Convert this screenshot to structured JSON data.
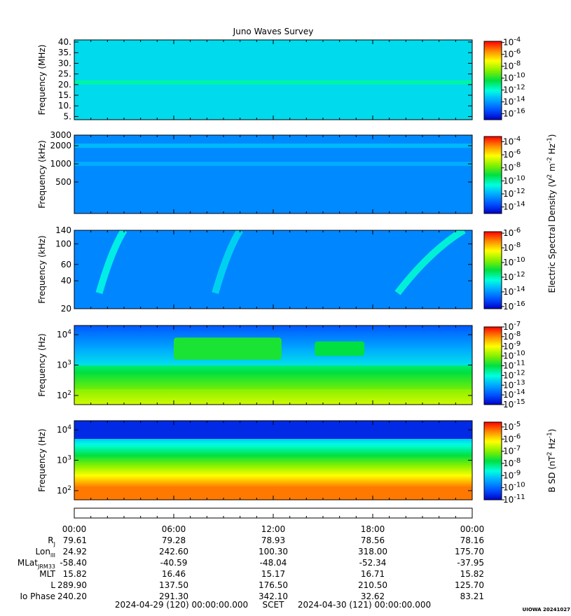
{
  "title": "Juno Waves Survey",
  "footer": {
    "start": "2024-04-29 (120) 00:00:00.000",
    "scet": "SCET",
    "end": "2024-04-30 (121) 00:00:00.000",
    "stamp": "UIOWA 20241027"
  },
  "colorbar_labels": {
    "electric": "Electric Spectral Density (V2 m-2 Hz-1)",
    "magnetic": "B SD (nT2 Hz-1)"
  },
  "chart_data": [
    {
      "type": "heatmap",
      "panel": "spectrogram-40mhz",
      "ylabel": "Frequency (MHz)",
      "yscale": "linear",
      "ylim": [
        3.5,
        41
      ],
      "yticks": [
        "5.",
        "10.",
        "15.",
        "20.",
        "25.",
        "30.",
        "35.",
        "40."
      ],
      "xlim_hours": [
        0,
        24
      ],
      "colorbar": {
        "ticks": [
          "-4",
          "-6",
          "-8",
          "-10",
          "-12",
          "-14",
          "-16"
        ],
        "range_log10": [
          -17,
          -3.8
        ]
      },
      "features": [
        {
          "kind": "emission-band",
          "freq_mhz": 21,
          "level_log10": -11.5
        }
      ],
      "background_log10": -12.8
    },
    {
      "type": "heatmap",
      "panel": "spectrogram-3mhz",
      "ylabel": "Frequency (kHz)",
      "yscale": "log",
      "ylim": [
        150,
        3000
      ],
      "yticks": [
        "3000",
        "2000",
        "1000",
        "500"
      ],
      "xlim_hours": [
        0,
        24
      ],
      "colorbar": {
        "ticks": [
          "-4",
          "-6",
          "-8",
          "-10",
          "-12",
          "-14"
        ],
        "range_log10": [
          -15,
          -3.2
        ]
      },
      "features": [
        {
          "kind": "emission-band",
          "freq_khz": 2000,
          "level_log10": -11.8
        },
        {
          "kind": "emission-band",
          "freq_khz": 1000,
          "level_log10": -12.0
        }
      ],
      "background_log10": -12.6
    },
    {
      "type": "heatmap",
      "panel": "spectrogram-140khz",
      "ylabel": "Frequency (kHz)",
      "yscale": "log",
      "ylim": [
        20,
        140
      ],
      "yticks": [
        "140",
        "100",
        "60",
        "40",
        "20"
      ],
      "xlim_hours": [
        0,
        24
      ],
      "colorbar": {
        "ticks": [
          "-6",
          "-8",
          "-10",
          "-12",
          "-14",
          "-16"
        ],
        "range_log10": [
          -16.3,
          -5.8
        ]
      },
      "features": [
        {
          "kind": "arc",
          "hours": [
            1.5,
            3.0
          ],
          "level_log10": -12.5
        },
        {
          "kind": "arc",
          "hours": [
            8.5,
            10.0
          ],
          "level_log10": -13.0
        },
        {
          "kind": "arc",
          "hours": [
            19.5,
            23.5
          ],
          "level_log10": -12.3
        }
      ],
      "background_log10": -14.2
    },
    {
      "type": "heatmap",
      "panel": "spectrogram-20khz",
      "ylabel": "Frequency (Hz)",
      "yscale": "log",
      "ylim": [
        50,
        20000
      ],
      "yticks": [
        "10^4",
        "10^3",
        "10^2"
      ],
      "xlim_hours": [
        0,
        24
      ],
      "colorbar": {
        "ticks": [
          "-7",
          "-8",
          "-9",
          "-10",
          "-11",
          "-12",
          "-13",
          "-14",
          "-15"
        ],
        "range_log10": [
          -15,
          -7
        ]
      },
      "features": [
        {
          "kind": "hiss",
          "hours": [
            6.0,
            12.5
          ],
          "freq_hz": [
            1500,
            8000
          ],
          "level_log10": -10.8
        },
        {
          "kind": "hiss",
          "hours": [
            14.5,
            17.5
          ],
          "freq_hz": [
            2000,
            6000
          ],
          "level_log10": -11.0
        }
      ],
      "background_log10": -13.0
    },
    {
      "type": "heatmap",
      "panel": "magnetic-spectrogram",
      "ylabel": "Frequency (Hz)",
      "yscale": "log",
      "ylim": [
        50,
        20000
      ],
      "yticks": [
        "10^4",
        "10^3",
        "10^2"
      ],
      "xlim_hours": [
        0,
        24
      ],
      "colorbar": {
        "ticks": [
          "-5",
          "-6",
          "-7",
          "-8",
          "-9",
          "-10",
          "-11"
        ],
        "range_log10": [
          -11,
          -4.6
        ]
      },
      "features": [],
      "background_log10": -10.2
    }
  ],
  "time_axis": {
    "ticks": [
      "00:00",
      "06:00",
      "12:00",
      "18:00",
      "00:00"
    ]
  },
  "ephemeris": [
    {
      "label": "R",
      "sub": "J",
      "values": [
        "79.61",
        "79.28",
        "78.93",
        "78.56",
        "78.16"
      ]
    },
    {
      "label": "Lon",
      "sub": "III",
      "values": [
        "24.92",
        "242.60",
        "100.30",
        "318.00",
        "175.70"
      ]
    },
    {
      "label": "MLat",
      "sub": "JRM33",
      "values": [
        "-58.40",
        "-40.59",
        "-48.04",
        "-52.34",
        "-37.95"
      ]
    },
    {
      "label": "MLT",
      "sub": "",
      "values": [
        "15.82",
        "16.46",
        "15.17",
        "16.71",
        "15.82"
      ]
    },
    {
      "label": "L",
      "sub": "",
      "values": [
        "289.90",
        "137.50",
        "176.50",
        "210.50",
        "125.70"
      ]
    },
    {
      "label": "Io Phase",
      "sub": "",
      "values": [
        "240.20",
        "291.30",
        "342.10",
        "32.62",
        "83.21"
      ]
    }
  ]
}
